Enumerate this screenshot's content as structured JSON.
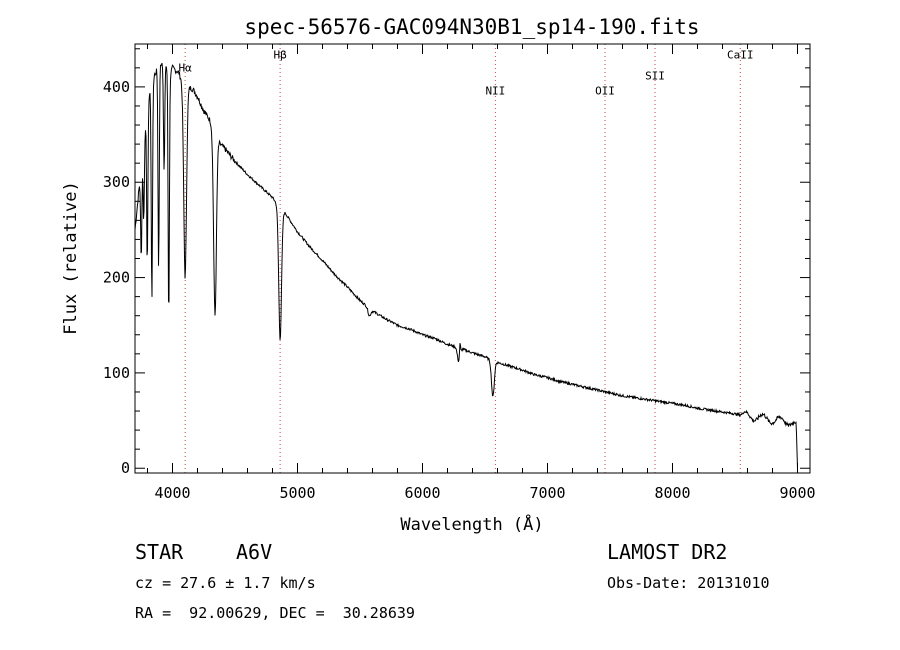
{
  "chart_data": {
    "type": "line",
    "title": "spec-56576-GAC094N30B1_sp14-190.fits",
    "xlabel": "Wavelength (Å)",
    "ylabel": "Flux (relative)",
    "xlim": [
      3700,
      9100
    ],
    "ylim": [
      -5,
      445
    ],
    "xticks": [
      4000,
      5000,
      6000,
      7000,
      8000,
      9000
    ],
    "yticks": [
      0,
      100,
      200,
      300,
      400
    ],
    "grid": false,
    "series": [
      {
        "name": "spectrum",
        "x": [
          3700,
          3730,
          3760,
          3790,
          3820,
          3850,
          3880,
          3910,
          3940,
          3970,
          4000,
          4050,
          4080,
          4101,
          4120,
          4160,
          4200,
          4250,
          4300,
          4340,
          4380,
          4420,
          4500,
          4600,
          4700,
          4800,
          4861,
          4900,
          5000,
          5100,
          5200,
          5300,
          5400,
          5500,
          5600,
          5700,
          5800,
          5900,
          6000,
          6100,
          6200,
          6300,
          6400,
          6500,
          6563,
          6600,
          6700,
          6800,
          6900,
          7000,
          7100,
          7200,
          7300,
          7400,
          7500,
          7600,
          7700,
          7800,
          7900,
          8000,
          8100,
          8200,
          8300,
          8400,
          8500,
          8600,
          8700,
          8800,
          8900,
          8950,
          8990,
          9000
        ],
        "y": [
          250,
          290,
          330,
          370,
          395,
          410,
          420,
          425,
          428,
          410,
          420,
          415,
          405,
          395,
          400,
          398,
          390,
          375,
          365,
          352,
          340,
          335,
          322,
          308,
          296,
          284,
          272,
          268,
          248,
          232,
          218,
          203,
          190,
          176,
          165,
          157,
          150,
          146,
          140,
          136,
          130,
          126,
          121,
          117,
          112,
          111,
          107,
          103,
          98,
          95,
          91,
          88,
          85,
          82,
          79,
          76,
          74,
          72,
          70,
          68,
          66,
          63,
          61,
          59,
          57,
          55,
          53,
          51,
          49,
          49,
          45,
          0
        ]
      }
    ],
    "absorption_dips": [
      {
        "wavelength": 3750,
        "flux": 220
      },
      {
        "wavelength": 3770,
        "flux": 260
      },
      {
        "wavelength": 3798,
        "flux": 215
      },
      {
        "wavelength": 3835,
        "flux": 175
      },
      {
        "wavelength": 3889,
        "flux": 210
      },
      {
        "wavelength": 3933,
        "flux": 310
      },
      {
        "wavelength": 3970,
        "flux": 155
      },
      {
        "wavelength": 4101,
        "flux": 200
      },
      {
        "wavelength": 4340,
        "flux": 160
      },
      {
        "wavelength": 4861,
        "flux": 135
      },
      {
        "wavelength": 5575,
        "flux": 160
      },
      {
        "wavelength": 6290,
        "flux": 112
      },
      {
        "wavelength": 6563,
        "flux": 75
      }
    ],
    "emission_spikes": [
      {
        "wavelength": 6300,
        "flux": 140
      }
    ],
    "line_markers": [
      {
        "label": "Hα",
        "wavelength": 4101,
        "label_flux": 416
      },
      {
        "label": "Hβ",
        "wavelength": 4861,
        "label_flux": 430
      },
      {
        "label": "NII",
        "wavelength": 6583,
        "label_flux": 392
      },
      {
        "label": "OII",
        "wavelength": 7460,
        "label_flux": 392
      },
      {
        "label": "SII",
        "wavelength": 7860,
        "label_flux": 408
      },
      {
        "label": "CaII",
        "wavelength": 8542,
        "label_flux": 430
      }
    ]
  },
  "info": {
    "object_class": "STAR",
    "subclass": "A6V",
    "survey": "LAMOST DR2",
    "redshift": "cz = 27.6 ± 1.7 km/s",
    "obs_date": "Obs-Date: 20131010",
    "coordinates": "RA =  92.00629, DEC =  30.28639"
  },
  "colors": {
    "axis": "#000000",
    "spectrum": "#000000",
    "marker_line": "#cc4444"
  }
}
